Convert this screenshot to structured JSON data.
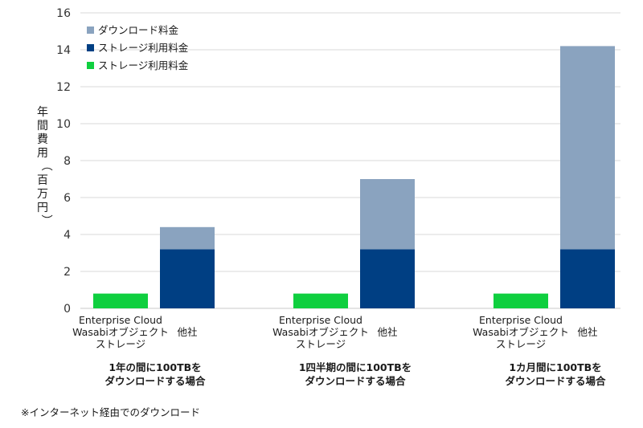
{
  "chart_data": {
    "type": "bar",
    "stacked": true,
    "ylabel": "年間費用（百万円）",
    "ylim": [
      0,
      16
    ],
    "yticks": [
      0,
      2,
      4,
      6,
      8,
      10,
      12,
      14,
      16
    ],
    "grid": true,
    "legend_position": "top-left",
    "groups": [
      {
        "label_lines": [
          "1年の間に100TBを",
          "ダウンロードする場合"
        ],
        "bars": [
          {
            "label_lines": [
              "Enterprise Cloud",
              "Wasabiオブジェクト",
              "ストレージ"
            ],
            "segments": {
              "wasabi_storage": 0.8
            }
          },
          {
            "label_lines": [
              "他社"
            ],
            "segments": {
              "storage": 3.2,
              "download": 1.2
            }
          }
        ]
      },
      {
        "label_lines": [
          "1四半期の間に100TBを",
          "ダウンロードする場合"
        ],
        "bars": [
          {
            "label_lines": [
              "Enterprise Cloud",
              "Wasabiオブジェクト",
              "ストレージ"
            ],
            "segments": {
              "wasabi_storage": 0.8
            }
          },
          {
            "label_lines": [
              "他社"
            ],
            "segments": {
              "storage": 3.2,
              "download": 3.8
            }
          }
        ]
      },
      {
        "label_lines": [
          "1カ月間に100TBを",
          "ダウンロードする場合"
        ],
        "bars": [
          {
            "label_lines": [
              "Enterprise Cloud",
              "Wasabiオブジェクト",
              "ストレージ"
            ],
            "segments": {
              "wasabi_storage": 0.8
            }
          },
          {
            "label_lines": [
              "他社"
            ],
            "segments": {
              "storage": 3.2,
              "download": 11.0
            }
          }
        ]
      }
    ],
    "series": [
      {
        "key": "download",
        "name": "ダウンロード料金",
        "color": "#8aa3bf"
      },
      {
        "key": "storage",
        "name": "ストレージ利用料金",
        "color": "#003f83"
      },
      {
        "key": "wasabi_storage",
        "name": "ストレージ利用料金",
        "color": "#0fcf3f"
      }
    ],
    "stack_order": [
      "wasabi_storage",
      "storage",
      "download"
    ]
  },
  "footnote": "※インターネット経由でのダウンロード"
}
